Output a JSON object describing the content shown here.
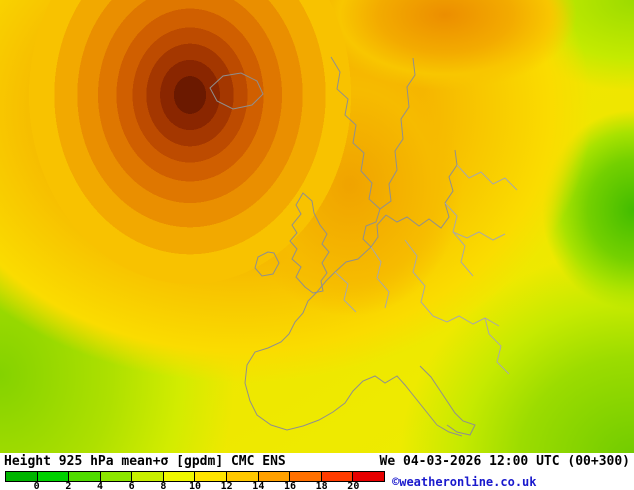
{
  "titlebar": {
    "left": "Height 925 hPa mean+σ [gpdm] CMC ENS",
    "right": "We 04-03-2026 12:00 UTC (00+300)"
  },
  "scale": {
    "ticks": [
      "0",
      "2",
      "4",
      "6",
      "8",
      "10",
      "12",
      "14",
      "16",
      "18",
      "20"
    ],
    "segments": [
      "#00b400",
      "#00d200",
      "#50dc00",
      "#8ce600",
      "#c8f000",
      "#f0f800",
      "#ffe400",
      "#ffc800",
      "#ffa000",
      "#ff7000",
      "#ff3c00",
      "#e60000"
    ]
  },
  "copyright": "©weatheronline.co.uk",
  "map": {
    "palette": {
      "hot_core": "#6b1900",
      "orange_band": "#e17800",
      "amber_band": "#f5b400",
      "yellow_field": "#f0e400",
      "green_field": "#74d000",
      "coastline": "#8f8f8f"
    }
  }
}
